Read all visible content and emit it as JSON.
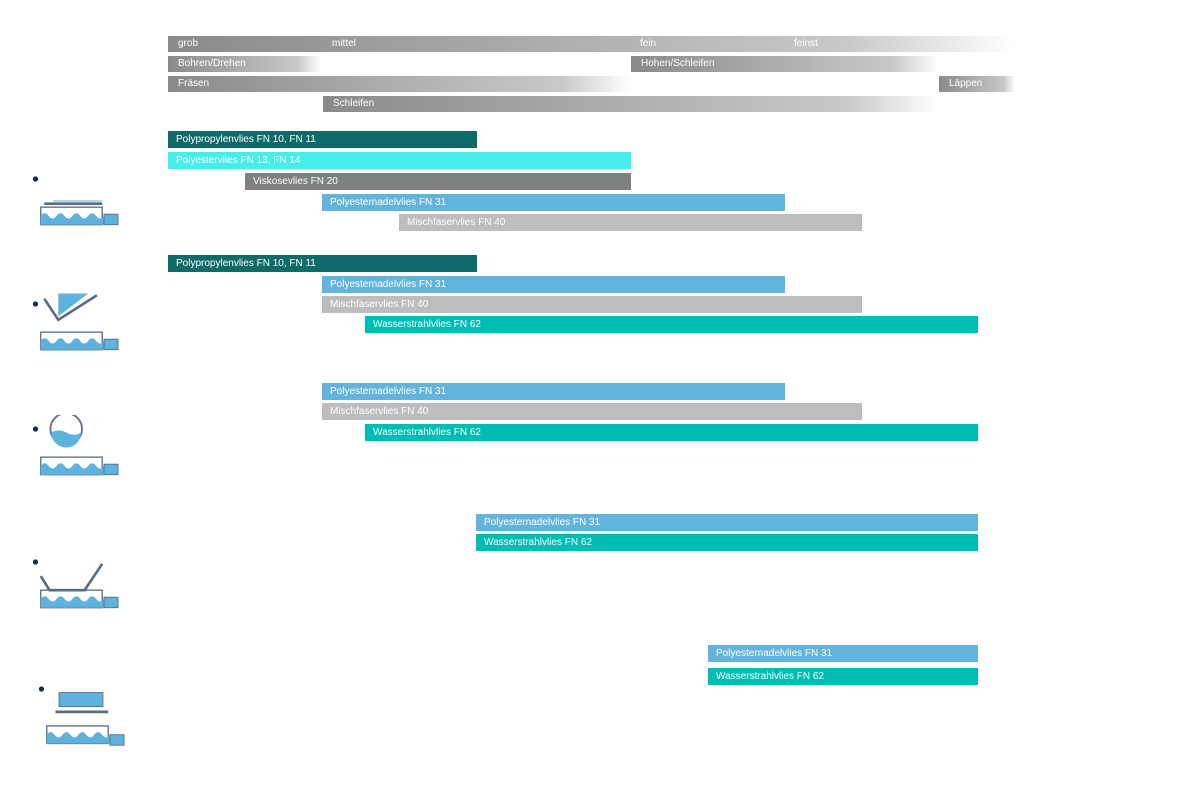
{
  "scale": {
    "levels": [
      "grob",
      "mittel",
      "fein",
      "feinst"
    ],
    "processes": [
      "Bohren/Drehen",
      "Hohen/Schleifen",
      "Fräsen",
      "Läppen",
      "Schleifen"
    ]
  },
  "colors": {
    "polypropylen": "#0e6b69",
    "polyester": "#45eee8",
    "viskose": "#808080",
    "polyesternadel": "#62b4dd",
    "mischfaser": "#bdbdbd",
    "wasserstrahl": "#00bdb3",
    "icon_blue": "#5db3dd",
    "icon_outline": "#5a6b82",
    "icon_dot": "#1b2a4a"
  },
  "sections": [
    {
      "icon": "machine-flat-belt-icon",
      "bars": [
        {
          "label": "Polypropylenvlies FN 10, FN 11",
          "color": "polypropylen"
        },
        {
          "label": "Polyestervlies FN 13, FN 14",
          "color": "polyester"
        },
        {
          "label": "Viskosevlies FN 20",
          "color": "viskose"
        },
        {
          "label": "Polyesternadelvlies FN 31",
          "color": "polyesternadel"
        },
        {
          "label": "Mischfaservlies FN 40",
          "color": "mischfaser"
        }
      ]
    },
    {
      "icon": "machine-v-belt-icon",
      "bars": [
        {
          "label": "Polypropylenvlies FN 10, FN 11",
          "color": "polypropylen"
        },
        {
          "label": "Polyesternadelvlies FN 31",
          "color": "polyesternadel"
        },
        {
          "label": "Mischfaservlies FN 40",
          "color": "mischfaser"
        },
        {
          "label": "Wasserstrahlvlies FN 62",
          "color": "wasserstrahl"
        }
      ]
    },
    {
      "icon": "machine-drum-icon",
      "bars": [
        {
          "label": "Polyesternadelvlies FN 31",
          "color": "polyesternadel"
        },
        {
          "label": "Mischfaservlies FN 40",
          "color": "mischfaser"
        },
        {
          "label": "Wasserstrahlvlies FN 62",
          "color": "wasserstrahl"
        }
      ]
    },
    {
      "icon": "machine-inclined-belt-icon",
      "bars": [
        {
          "label": "Polyesternadelvlies FN 31",
          "color": "polyesternadel"
        },
        {
          "label": "Wasserstrahlvlies FN 62",
          "color": "wasserstrahl"
        }
      ]
    },
    {
      "icon": "machine-double-tank-icon",
      "bars": [
        {
          "label": "Polyesternadelvlies FN 31",
          "color": "polyesternadel"
        },
        {
          "label": "Wasserstrahlvlies FN 62",
          "color": "wasserstrahl"
        }
      ]
    }
  ]
}
